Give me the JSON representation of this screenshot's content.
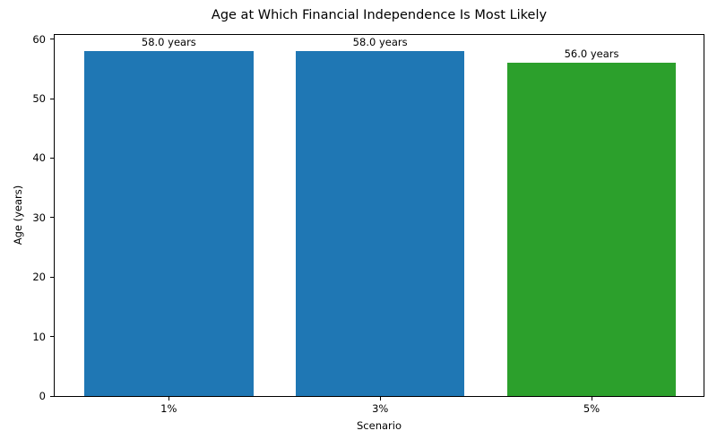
{
  "figure": {
    "background": "#ffffff",
    "text_color": "#000000",
    "frame_color": "#000000"
  },
  "chart_data": {
    "type": "bar",
    "title": "Age at Which Financial Independence Is Most Likely",
    "xlabel": "Scenario",
    "ylabel": "Age (years)",
    "categories": [
      "1%",
      "3%",
      "5%"
    ],
    "values": [
      58.0,
      58.0,
      56.0
    ],
    "bar_labels": [
      "58.0 years",
      "58.0 years",
      "56.0 years"
    ],
    "bar_colors": [
      "#1f77b4",
      "#1f77b4",
      "#2ca02c"
    ],
    "bar_width": 0.8,
    "yticks": [
      0,
      10,
      20,
      30,
      40,
      50,
      60
    ],
    "ylim": [
      0,
      60.7
    ],
    "xlim": [
      -0.54,
      2.53
    ],
    "grid": false,
    "legend_position": "none"
  }
}
